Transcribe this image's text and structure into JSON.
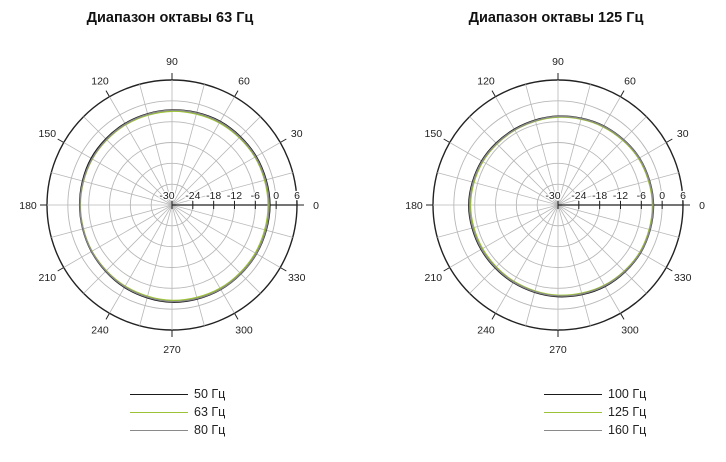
{
  "colors": {
    "background": "#ffffff",
    "grid": "#b8b8b8",
    "axis": "#222222",
    "outer_ring": "#222222"
  },
  "chart_data": [
    {
      "type": "polar_line",
      "title": "Диапазон октавы 63 Гц",
      "radial_axis": {
        "range": [
          -30,
          6
        ],
        "ticks": [
          -30,
          -24,
          -18,
          -12,
          -6,
          0,
          6
        ],
        "tick_labels": [
          "-30",
          "-24",
          "-18",
          "-12",
          "-6",
          "0",
          "6"
        ]
      },
      "angular_axis": {
        "unit": "degrees",
        "ticks": [
          0,
          30,
          60,
          90,
          120,
          150,
          180,
          210,
          240,
          270,
          300,
          330
        ],
        "tick_labels": [
          "0",
          "30",
          "60",
          "90",
          "120",
          "150",
          "180",
          "210",
          "240",
          "270",
          "300",
          "330"
        ]
      },
      "grid": true,
      "legend_position": "bottom",
      "series": [
        {
          "name": "50 Гц",
          "color": "#1a1a1a",
          "angles": [
            0,
            30,
            60,
            90,
            120,
            150,
            180,
            210,
            240,
            270,
            300,
            330
          ],
          "values": [
            -1.8,
            -2.0,
            -2.2,
            -2.6,
            -2.9,
            -3.1,
            -3.4,
            -3.2,
            -2.6,
            -2.0,
            -1.9,
            -1.9
          ]
        },
        {
          "name": "63 Гц",
          "color": "#9cc335",
          "angles": [
            0,
            30,
            60,
            90,
            120,
            150,
            180,
            210,
            240,
            270,
            300,
            330
          ],
          "values": [
            -2.3,
            -2.4,
            -2.7,
            -3.0,
            -3.3,
            -3.5,
            -3.6,
            -3.4,
            -3.0,
            -2.5,
            -2.3,
            -2.3
          ]
        },
        {
          "name": "80 Гц",
          "color": "#8a8a8a",
          "angles": [
            0,
            30,
            60,
            90,
            120,
            150,
            180,
            210,
            240,
            270,
            300,
            330
          ],
          "values": [
            -2.0,
            -2.2,
            -2.4,
            -2.7,
            -3.1,
            -3.4,
            -3.5,
            -3.3,
            -2.8,
            -2.2,
            -2.0,
            -2.0
          ]
        }
      ]
    },
    {
      "type": "polar_line",
      "title": "Диапазон октавы 125 Гц",
      "radial_axis": {
        "range": [
          -30,
          6
        ],
        "ticks": [
          -30,
          -24,
          -18,
          -12,
          -6,
          0,
          6
        ],
        "tick_labels": [
          "-30",
          "-24",
          "-18",
          "-12",
          "-6",
          "0",
          "6"
        ]
      },
      "angular_axis": {
        "unit": "degrees",
        "ticks": [
          0,
          30,
          60,
          90,
          120,
          150,
          180,
          210,
          240,
          270,
          300,
          330
        ],
        "tick_labels": [
          "0",
          "30",
          "60",
          "90",
          "120",
          "150",
          "180",
          "210",
          "240",
          "270",
          "300",
          "330"
        ]
      },
      "grid": true,
      "legend_position": "bottom",
      "series": [
        {
          "name": "100 Гц",
          "color": "#1a1a1a",
          "angles": [
            0,
            30,
            60,
            90,
            120,
            150,
            180,
            210,
            240,
            270,
            300,
            330
          ],
          "values": [
            -2.5,
            -2.9,
            -3.7,
            -4.4,
            -4.8,
            -4.6,
            -4.3,
            -4.4,
            -4.2,
            -3.6,
            -2.9,
            -2.5
          ]
        },
        {
          "name": "125 Гц",
          "color": "#9cc335",
          "angles": [
            0,
            30,
            60,
            90,
            120,
            150,
            180,
            210,
            240,
            270,
            300,
            330
          ],
          "values": [
            -2.8,
            -3.2,
            -4.0,
            -4.7,
            -5.1,
            -5.0,
            -4.8,
            -4.9,
            -4.6,
            -4.0,
            -3.3,
            -2.8
          ]
        },
        {
          "name": "160 Гц",
          "color": "#8a8a8a",
          "angles": [
            0,
            30,
            60,
            90,
            120,
            150,
            180,
            210,
            240,
            270,
            300,
            330
          ],
          "values": [
            -2.6,
            -3.0,
            -3.8,
            -4.5,
            -5.0,
            -4.8,
            -4.5,
            -4.6,
            -4.4,
            -3.8,
            -3.1,
            -2.6
          ]
        }
      ]
    }
  ]
}
